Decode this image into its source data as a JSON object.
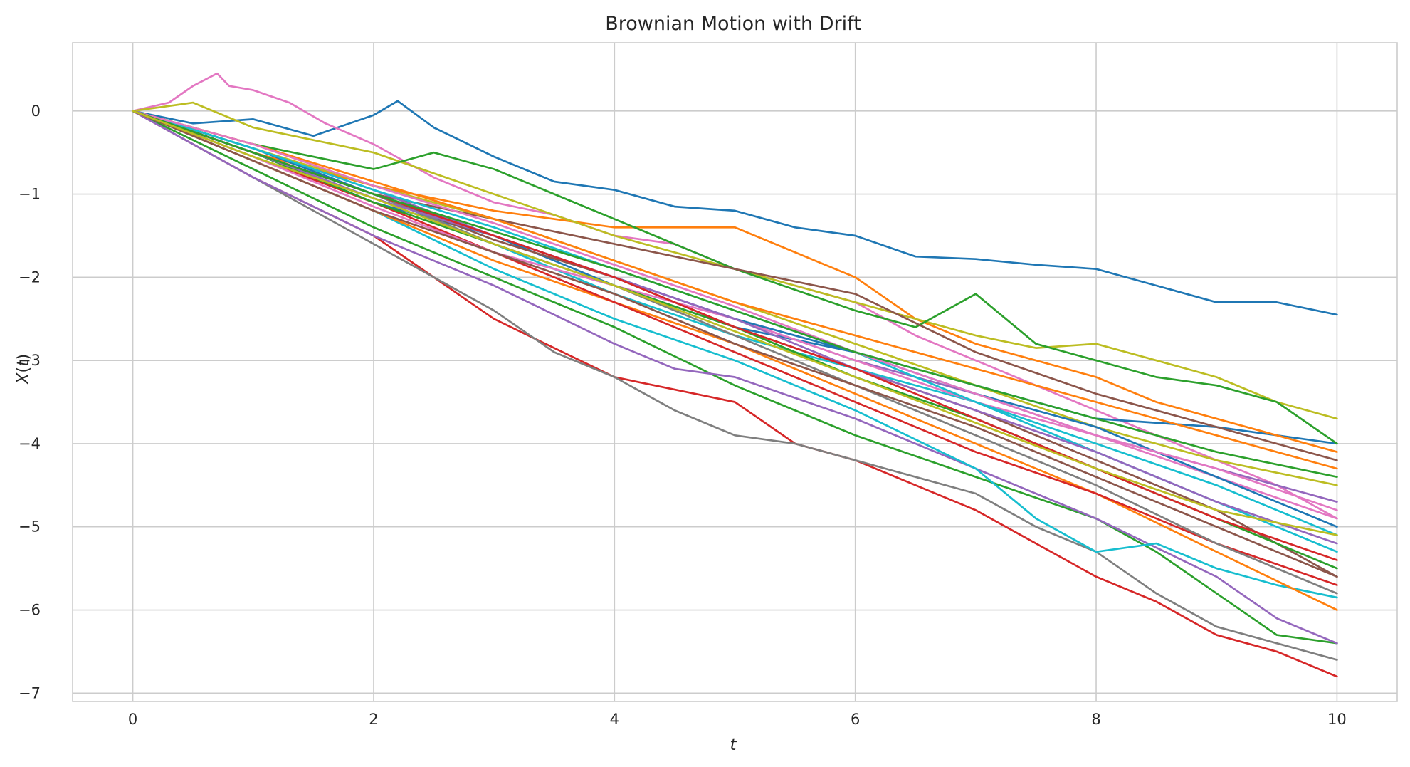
{
  "chart_data": {
    "type": "line",
    "title": "Brownian Motion with Drift",
    "xlabel": "t",
    "ylabel": "X(t)",
    "xlim": [
      -0.5,
      10.5
    ],
    "ylim": [
      -7.1,
      0.82
    ],
    "xticks": [
      0,
      2,
      4,
      6,
      8,
      10
    ],
    "yticks": [
      0,
      -1,
      -2,
      -3,
      -4,
      -5,
      -6,
      -7
    ],
    "grid": true,
    "legend": "none",
    "palette": [
      "#1f77b4",
      "#ff7f0e",
      "#2ca02c",
      "#d62728",
      "#9467bd",
      "#8c564b",
      "#e377c2",
      "#7f7f7f",
      "#bcbd22",
      "#17becf"
    ],
    "series": [
      {
        "color": "#1f77b4",
        "x": [
          0,
          0.5,
          1,
          1.5,
          2,
          2.2,
          2.5,
          3,
          3.5,
          4,
          4.5,
          5,
          5.5,
          6,
          6.5,
          7,
          7.5,
          8,
          8.5,
          9,
          9.5,
          10
        ],
        "y": [
          0,
          -0.15,
          -0.1,
          -0.3,
          -0.05,
          0.12,
          -0.2,
          -0.55,
          -0.85,
          -0.95,
          -1.15,
          -1.2,
          -1.4,
          -1.5,
          -1.75,
          -1.78,
          -1.85,
          -1.9,
          -2.1,
          -2.3,
          -2.3,
          -2.45
        ]
      },
      {
        "color": "#e377c2",
        "x": [
          0,
          0.3,
          0.5,
          0.7,
          0.8,
          1,
          1.3,
          1.6,
          2,
          2.5,
          3,
          3.5,
          4,
          4.5,
          5,
          5.5,
          6,
          6.5,
          7,
          7.5,
          8,
          8.5,
          9,
          9.5,
          10
        ],
        "y": [
          0,
          0.1,
          0.3,
          0.45,
          0.3,
          0.25,
          0.1,
          -0.15,
          -0.4,
          -0.8,
          -1.1,
          -1.25,
          -1.5,
          -1.6,
          -1.9,
          -2.1,
          -2.3,
          -2.7,
          -3.0,
          -3.3,
          -3.6,
          -3.9,
          -4.2,
          -4.5,
          -4.9
        ]
      },
      {
        "color": "#1f77b4",
        "x": [
          0,
          1,
          2,
          3,
          4,
          5,
          6,
          7,
          8,
          9,
          10
        ],
        "y": [
          0,
          -0.5,
          -1.1,
          -1.5,
          -2.1,
          -2.6,
          -2.9,
          -3.3,
          -3.7,
          -3.8,
          -4.0
        ]
      },
      {
        "color": "#ff7f0e",
        "x": [
          0,
          1,
          2,
          3,
          4,
          5,
          5.5,
          6,
          6.5,
          7,
          7.5,
          8,
          8.5,
          9,
          9.5,
          10
        ],
        "y": [
          0,
          -0.5,
          -0.9,
          -1.2,
          -1.4,
          -1.4,
          -1.7,
          -2.0,
          -2.5,
          -2.8,
          -3.0,
          -3.2,
          -3.5,
          -3.7,
          -3.9,
          -4.1
        ]
      },
      {
        "color": "#bcbd22",
        "x": [
          0,
          0.5,
          1,
          2,
          3,
          4,
          5,
          6,
          7,
          7.5,
          8,
          8.5,
          9,
          9.5,
          10
        ],
        "y": [
          0,
          0.1,
          -0.2,
          -0.5,
          -1.0,
          -1.5,
          -1.9,
          -2.3,
          -2.7,
          -2.85,
          -2.8,
          -3.0,
          -3.2,
          -3.5,
          -3.7
        ]
      },
      {
        "color": "#2ca02c",
        "x": [
          0,
          1,
          2,
          2.5,
          3,
          4,
          5,
          6,
          6.5,
          7,
          7.5,
          8,
          8.5,
          9,
          9.5,
          10
        ],
        "y": [
          0,
          -0.4,
          -0.7,
          -0.5,
          -0.7,
          -1.3,
          -1.9,
          -2.4,
          -2.6,
          -2.2,
          -2.8,
          -3.0,
          -3.2,
          -3.3,
          -3.5,
          -4.0
        ]
      },
      {
        "color": "#8c564b",
        "x": [
          0,
          1,
          2,
          3,
          4,
          5,
          6,
          7,
          8,
          9,
          10
        ],
        "y": [
          0,
          -0.5,
          -1.0,
          -1.3,
          -1.6,
          -1.9,
          -2.2,
          -2.9,
          -3.4,
          -3.8,
          -4.2
        ]
      },
      {
        "color": "#d62728",
        "x": [
          0,
          1,
          2,
          3,
          4,
          5,
          5.5,
          6,
          7,
          7.5,
          8,
          8.5,
          9,
          9.5,
          10
        ],
        "y": [
          0,
          -0.8,
          -1.5,
          -2.5,
          -3.2,
          -3.5,
          -4.0,
          -4.2,
          -4.8,
          -5.2,
          -5.6,
          -5.9,
          -6.3,
          -6.5,
          -6.8
        ]
      },
      {
        "color": "#7f7f7f",
        "x": [
          0,
          1,
          2,
          3,
          3.5,
          4,
          4.5,
          5,
          5.5,
          6,
          6.5,
          7,
          7.5,
          8,
          8.5,
          9,
          9.5,
          10
        ],
        "y": [
          0,
          -0.8,
          -1.6,
          -2.4,
          -2.9,
          -3.2,
          -3.6,
          -3.9,
          -4.0,
          -4.2,
          -4.4,
          -4.6,
          -5.0,
          -5.3,
          -5.8,
          -6.2,
          -6.4,
          -6.6
        ]
      },
      {
        "color": "#2ca02c",
        "x": [
          0,
          1,
          2,
          3,
          4,
          5,
          6,
          7,
          8,
          8.5,
          9,
          9.5,
          10
        ],
        "y": [
          0,
          -0.7,
          -1.4,
          -2.0,
          -2.6,
          -3.3,
          -3.9,
          -4.4,
          -4.9,
          -5.3,
          -5.8,
          -6.3,
          -6.4
        ]
      },
      {
        "color": "#9467bd",
        "x": [
          0,
          1,
          2,
          3,
          4,
          4.5,
          5,
          6,
          7,
          8,
          9,
          9.5,
          10
        ],
        "y": [
          0,
          -0.8,
          -1.5,
          -2.1,
          -2.8,
          -3.1,
          -3.2,
          -3.7,
          -4.3,
          -4.9,
          -5.6,
          -6.1,
          -6.4
        ]
      },
      {
        "color": "#17becf",
        "x": [
          0,
          1,
          2,
          3,
          4,
          5,
          6,
          7,
          7.5,
          8,
          8.5,
          9,
          9.5,
          10
        ],
        "y": [
          0,
          -0.6,
          -1.2,
          -1.9,
          -2.5,
          -3.0,
          -3.6,
          -4.3,
          -4.9,
          -5.3,
          -5.2,
          -5.5,
          -5.7,
          -5.85
        ]
      },
      {
        "color": "#ff7f0e",
        "x": [
          0,
          1,
          2,
          3,
          4,
          5,
          6,
          7,
          8,
          9,
          10
        ],
        "y": [
          0,
          -0.6,
          -1.2,
          -1.8,
          -2.3,
          -2.8,
          -3.4,
          -4.0,
          -4.6,
          -5.3,
          -6.0
        ]
      },
      {
        "color": "#d62728",
        "x": [
          0,
          1,
          2,
          3,
          4,
          5,
          6,
          7,
          8,
          9,
          10
        ],
        "y": [
          0,
          -0.55,
          -1.1,
          -1.7,
          -2.3,
          -2.9,
          -3.5,
          -4.1,
          -4.6,
          -5.2,
          -5.7
        ]
      },
      {
        "color": "#8c564b",
        "x": [
          0,
          1,
          2,
          3,
          4,
          5,
          6,
          7,
          8,
          9,
          10
        ],
        "y": [
          0,
          -0.5,
          -1.0,
          -1.55,
          -2.0,
          -2.6,
          -3.1,
          -3.6,
          -4.2,
          -4.8,
          -5.6
        ]
      },
      {
        "color": "#9467bd",
        "x": [
          0,
          1,
          2,
          3,
          4,
          5,
          6,
          7,
          8,
          9,
          10
        ],
        "y": [
          0,
          -0.45,
          -0.95,
          -1.5,
          -2.0,
          -2.5,
          -3.0,
          -3.4,
          -3.9,
          -4.3,
          -4.7
        ]
      },
      {
        "color": "#17becf",
        "x": [
          0,
          1,
          2,
          3,
          4,
          5,
          6,
          7,
          8,
          9,
          10
        ],
        "y": [
          0,
          -0.5,
          -1.0,
          -1.6,
          -2.2,
          -2.7,
          -3.1,
          -3.5,
          -4.1,
          -4.7,
          -5.3
        ]
      },
      {
        "color": "#e377c2",
        "x": [
          0,
          1,
          2,
          3,
          4,
          5,
          6,
          7,
          8,
          9,
          10
        ],
        "y": [
          0,
          -0.55,
          -1.15,
          -1.7,
          -2.1,
          -2.5,
          -3.0,
          -3.5,
          -3.9,
          -4.4,
          -4.9
        ]
      },
      {
        "color": "#bcbd22",
        "x": [
          0,
          1,
          2,
          3,
          4,
          5,
          6,
          7,
          8,
          9,
          10
        ],
        "y": [
          0,
          -0.45,
          -0.9,
          -1.3,
          -1.8,
          -2.3,
          -2.8,
          -3.3,
          -3.8,
          -4.2,
          -4.5
        ]
      },
      {
        "color": "#2ca02c",
        "x": [
          0,
          1,
          2,
          3,
          4,
          5,
          6,
          7,
          8,
          9,
          10
        ],
        "y": [
          0,
          -0.5,
          -1.1,
          -1.6,
          -2.1,
          -2.6,
          -3.2,
          -3.7,
          -4.3,
          -4.9,
          -5.5
        ]
      },
      {
        "color": "#1f77b4",
        "x": [
          0,
          1,
          2,
          3,
          4,
          5,
          6,
          7,
          8,
          9,
          10
        ],
        "y": [
          0,
          -0.45,
          -1.0,
          -1.5,
          -2.0,
          -2.5,
          -2.9,
          -3.4,
          -3.8,
          -4.4,
          -5.0
        ]
      },
      {
        "color": "#7f7f7f",
        "x": [
          0,
          1,
          2,
          3,
          4,
          5,
          6,
          7,
          8,
          9,
          10
        ],
        "y": [
          0,
          -0.5,
          -1.0,
          -1.6,
          -2.1,
          -2.7,
          -3.3,
          -3.9,
          -4.5,
          -5.2,
          -5.8
        ]
      },
      {
        "color": "#ff7f0e",
        "x": [
          0,
          1,
          2,
          3,
          4,
          5,
          6,
          7,
          8,
          9,
          10
        ],
        "y": [
          0,
          -0.4,
          -0.85,
          -1.3,
          -1.8,
          -2.3,
          -2.7,
          -3.1,
          -3.5,
          -3.9,
          -4.3
        ]
      },
      {
        "color": "#9467bd",
        "x": [
          0,
          1,
          2,
          3,
          4,
          5,
          6,
          7,
          8,
          9,
          10
        ],
        "y": [
          0,
          -0.5,
          -1.05,
          -1.5,
          -2.0,
          -2.5,
          -3.1,
          -3.6,
          -4.1,
          -4.7,
          -5.2
        ]
      },
      {
        "color": "#8c564b",
        "x": [
          0,
          1,
          2,
          3,
          4,
          5,
          6,
          7,
          8,
          9,
          10
        ],
        "y": [
          0,
          -0.6,
          -1.2,
          -1.7,
          -2.2,
          -2.8,
          -3.3,
          -3.8,
          -4.4,
          -5.0,
          -5.6
        ]
      },
      {
        "color": "#17becf",
        "x": [
          0,
          1,
          2,
          3,
          4,
          5,
          6,
          7,
          8,
          9,
          10
        ],
        "y": [
          0,
          -0.45,
          -0.95,
          -1.4,
          -1.9,
          -2.4,
          -2.9,
          -3.5,
          -4.0,
          -4.5,
          -5.1
        ]
      },
      {
        "color": "#d62728",
        "x": [
          0,
          1,
          2,
          3,
          4,
          5,
          6,
          7,
          8,
          9,
          10
        ],
        "y": [
          0,
          -0.5,
          -1.0,
          -1.5,
          -2.0,
          -2.6,
          -3.1,
          -3.7,
          -4.3,
          -4.9,
          -5.4
        ]
      },
      {
        "color": "#e377c2",
        "x": [
          0,
          1,
          2,
          3,
          4,
          5,
          6,
          7,
          8,
          9,
          10
        ],
        "y": [
          0,
          -0.4,
          -0.9,
          -1.35,
          -1.85,
          -2.35,
          -2.9,
          -3.4,
          -3.9,
          -4.3,
          -4.8
        ]
      },
      {
        "color": "#2ca02c",
        "x": [
          0,
          1,
          2,
          3,
          4,
          5,
          6,
          7,
          8,
          9,
          10
        ],
        "y": [
          0,
          -0.5,
          -1.0,
          -1.45,
          -1.9,
          -2.4,
          -2.9,
          -3.3,
          -3.7,
          -4.1,
          -4.4
        ]
      },
      {
        "color": "#bcbd22",
        "x": [
          0,
          1,
          2,
          3,
          4,
          5,
          6,
          7,
          8,
          9,
          10
        ],
        "y": [
          0,
          -0.55,
          -1.05,
          -1.6,
          -2.1,
          -2.65,
          -3.2,
          -3.75,
          -4.3,
          -4.8,
          -5.1
        ]
      }
    ]
  }
}
